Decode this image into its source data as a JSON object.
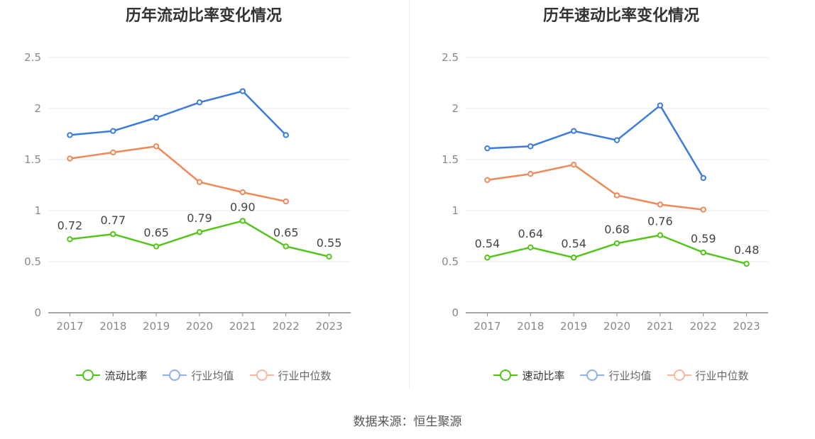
{
  "chart_data": [
    {
      "type": "line",
      "title": "历年流动比率变化情况",
      "categories": [
        "2017",
        "2018",
        "2019",
        "2020",
        "2021",
        "2022",
        "2023"
      ],
      "ylim": [
        0,
        2.5
      ],
      "yticks": [
        "0",
        "0.5",
        "1",
        "1.5",
        "2",
        "2.5"
      ],
      "grid": true,
      "legend_position": "bottom",
      "series": [
        {
          "name": "流动比率",
          "color": "#52c41a",
          "values": [
            0.72,
            0.77,
            0.65,
            0.79,
            0.9,
            0.65,
            0.55
          ],
          "labels": [
            "0.72",
            "0.77",
            "0.65",
            "0.79",
            "0.90",
            "0.65",
            "0.55"
          ]
        },
        {
          "name": "行业均值",
          "color": "#3b7be0",
          "values": [
            1.74,
            1.78,
            1.91,
            2.06,
            2.17,
            1.74,
            null
          ]
        },
        {
          "name": "行业中位数",
          "color": "#f0895a",
          "values": [
            1.51,
            1.57,
            1.63,
            1.28,
            1.18,
            1.09,
            null
          ]
        }
      ]
    },
    {
      "type": "line",
      "title": "历年速动比率变化情况",
      "categories": [
        "2017",
        "2018",
        "2019",
        "2020",
        "2021",
        "2022",
        "2023"
      ],
      "ylim": [
        0,
        2.5
      ],
      "yticks": [
        "0",
        "0.5",
        "1",
        "1.5",
        "2",
        "2.5"
      ],
      "grid": true,
      "legend_position": "bottom",
      "series": [
        {
          "name": "速动比率",
          "color": "#52c41a",
          "values": [
            0.54,
            0.64,
            0.54,
            0.68,
            0.76,
            0.59,
            0.48
          ],
          "labels": [
            "0.54",
            "0.64",
            "0.54",
            "0.68",
            "0.76",
            "0.59",
            "0.48"
          ]
        },
        {
          "name": "行业均值",
          "color": "#3b7be0",
          "values": [
            1.61,
            1.63,
            1.78,
            1.69,
            2.03,
            1.32,
            null
          ]
        },
        {
          "name": "行业中位数",
          "color": "#f0895a",
          "values": [
            1.3,
            1.36,
            1.45,
            1.15,
            1.06,
            1.01,
            null
          ]
        }
      ]
    }
  ],
  "legend_colors": {
    "active": [
      "#52c41a"
    ],
    "inactive": [
      "#8fb0ee",
      "#f6b79c"
    ]
  },
  "source": "数据来源：恒生聚源"
}
